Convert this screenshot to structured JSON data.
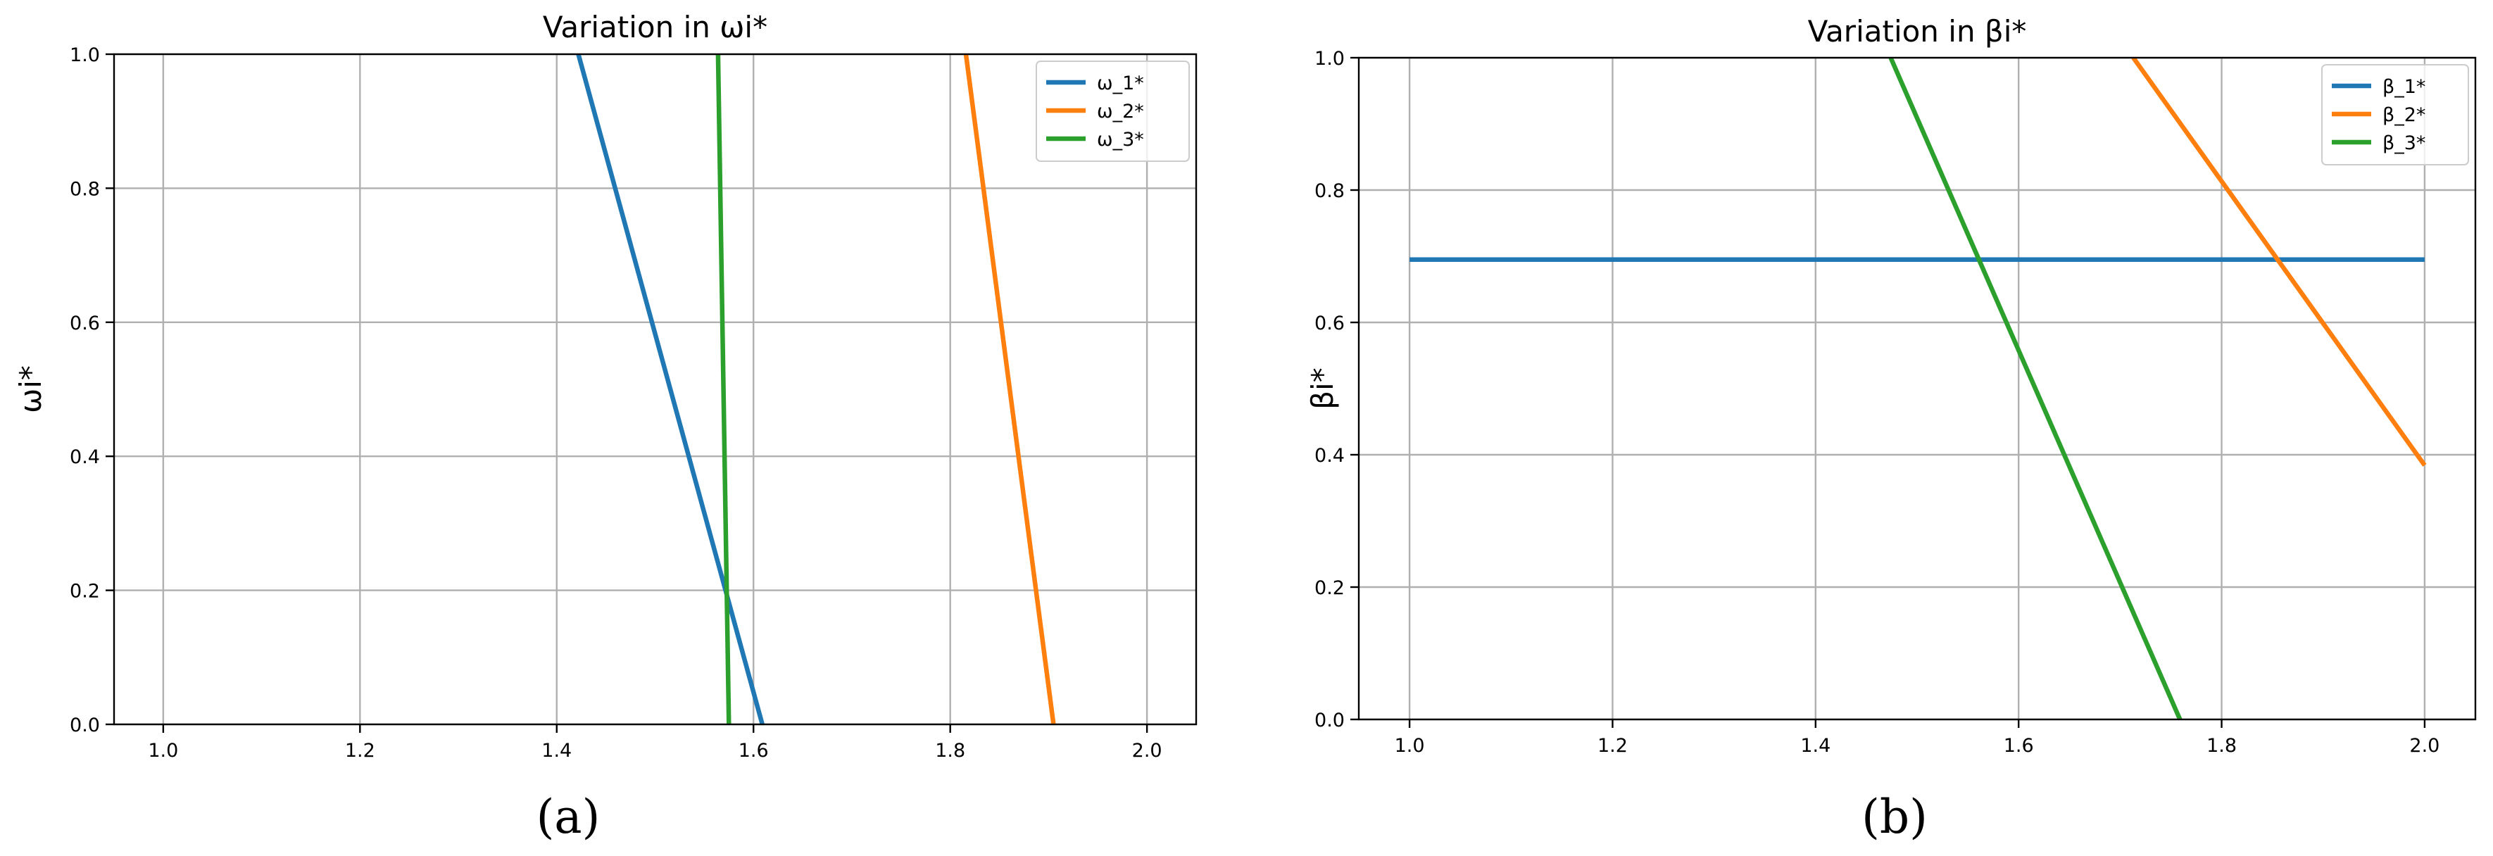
{
  "chart_data": [
    {
      "type": "line",
      "title": "Variation in ωi*",
      "xlabel": "",
      "ylabel": "ωi*",
      "panel_label": "(a)",
      "xlim": [
        0.95,
        2.05
      ],
      "ylim": [
        0.0,
        1.0
      ],
      "xticks": [
        1.0,
        1.2,
        1.4,
        1.6,
        1.8,
        2.0
      ],
      "yticks": [
        0.0,
        0.2,
        0.4,
        0.6,
        0.8,
        1.0
      ],
      "xtick_labels": [
        "1.0",
        "1.2",
        "1.4",
        "1.6",
        "1.8",
        "2.0"
      ],
      "ytick_labels": [
        "0.0",
        "0.2",
        "0.4",
        "0.6",
        "0.8",
        "1.0"
      ],
      "grid": true,
      "legend_position": "top-right",
      "series": [
        {
          "name": "ω_1*",
          "color": "#1f77b4",
          "x": [
            1.422,
            1.609
          ],
          "y": [
            1.0,
            0.0
          ]
        },
        {
          "name": "ω_2*",
          "color": "#ff7f0e",
          "x": [
            1.816,
            1.905
          ],
          "y": [
            1.0,
            0.0
          ]
        },
        {
          "name": "ω_3*",
          "color": "#2ca02c",
          "x": [
            1.564,
            1.575
          ],
          "y": [
            1.0,
            0.0
          ]
        }
      ]
    },
    {
      "type": "line",
      "title": "Variation in βi*",
      "xlabel": "",
      "ylabel": "βi*",
      "panel_label": "(b)",
      "xlim": [
        0.95,
        2.05
      ],
      "ylim": [
        0.0,
        1.0
      ],
      "xticks": [
        1.0,
        1.2,
        1.4,
        1.6,
        1.8,
        2.0
      ],
      "yticks": [
        0.0,
        0.2,
        0.4,
        0.6,
        0.8,
        1.0
      ],
      "xtick_labels": [
        "1.0",
        "1.2",
        "1.4",
        "1.6",
        "1.8",
        "2.0"
      ],
      "ytick_labels": [
        "0.0",
        "0.2",
        "0.4",
        "0.6",
        "0.8",
        "1.0"
      ],
      "grid": true,
      "legend_position": "top-right",
      "series": [
        {
          "name": "β_1*",
          "color": "#1f77b4",
          "x": [
            1.0,
            2.0
          ],
          "y": [
            0.695,
            0.695
          ]
        },
        {
          "name": "β_2*",
          "color": "#ff7f0e",
          "x": [
            1.713,
            2.0
          ],
          "y": [
            1.0,
            0.384
          ]
        },
        {
          "name": "β_3*",
          "color": "#2ca02c",
          "x": [
            1.474,
            1.759
          ],
          "y": [
            1.0,
            0.0
          ]
        }
      ]
    }
  ]
}
